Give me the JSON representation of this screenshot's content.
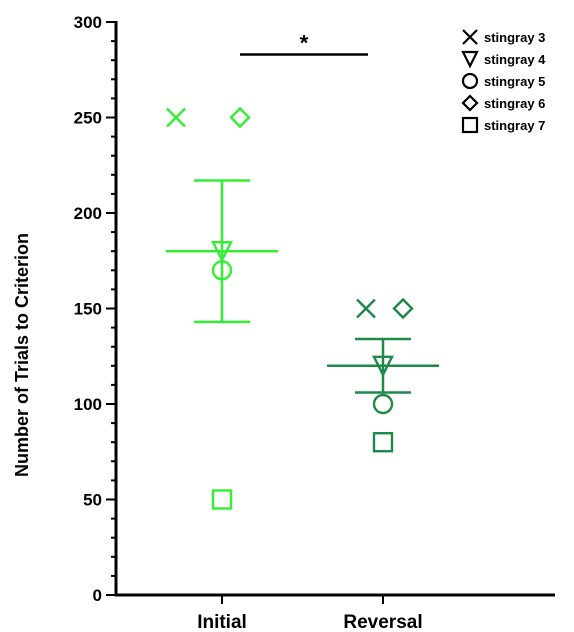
{
  "chart_data": {
    "type": "scatter",
    "ylabel": "Number of Trials to Criterion",
    "ylim": [
      0,
      300
    ],
    "y_ticks": [
      "0",
      "50",
      "100",
      "150",
      "200",
      "250",
      "300"
    ],
    "categories": [
      "Initial",
      "Reversal"
    ],
    "category_colors": [
      "#33ee33",
      "#1e8a4a"
    ],
    "series": [
      {
        "name": "stingray 3",
        "marker": "x-mark",
        "values": [
          250,
          150
        ]
      },
      {
        "name": "stingray 4",
        "marker": "triangle-down",
        "values": [
          180,
          120
        ]
      },
      {
        "name": "stingray 5",
        "marker": "circle",
        "values": [
          170,
          100
        ]
      },
      {
        "name": "stingray 6",
        "marker": "diamond",
        "values": [
          250,
          150
        ]
      },
      {
        "name": "stingray 7",
        "marker": "square",
        "values": [
          50,
          80
        ]
      }
    ],
    "summary": [
      {
        "category": "Initial",
        "mean": 180,
        "error_low": 143,
        "error_high": 217
      },
      {
        "category": "Reversal",
        "mean": 120,
        "error_low": 106,
        "error_high": 134
      }
    ],
    "significance": {
      "label": "*",
      "between": [
        "Initial",
        "Reversal"
      ],
      "y": 283
    },
    "legend_position": "top-right",
    "grid": false
  }
}
